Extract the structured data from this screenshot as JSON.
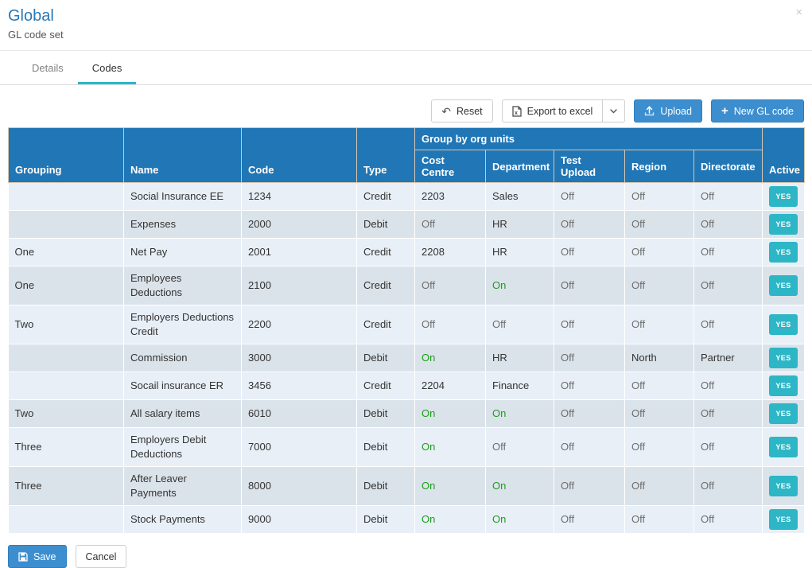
{
  "modal": {
    "title": "Global",
    "subtitle": "GL code set"
  },
  "icons": {
    "close": "×",
    "reset": "↶",
    "plus": "+"
  },
  "tabs": [
    {
      "label": "Details",
      "active": false
    },
    {
      "label": "Codes",
      "active": true
    }
  ],
  "toolbar": {
    "reset_label": "Reset",
    "export_label": "Export to excel",
    "upload_label": "Upload",
    "new_gl_label": "New GL code"
  },
  "table": {
    "group_header": "Group by org units",
    "columns": [
      "Grouping",
      "Name",
      "Code",
      "Type",
      "Cost Centre",
      "Department",
      "Test Upload",
      "Region",
      "Directorate",
      "Active"
    ],
    "row_keys": [
      "grouping",
      "name",
      "code",
      "type",
      "cost_centre",
      "department",
      "test_upload",
      "region",
      "directorate"
    ],
    "rows": [
      {
        "grouping": "",
        "name": "Social Insurance EE",
        "code": "1234",
        "type": "Credit",
        "cost_centre": "2203",
        "department": "Sales",
        "test_upload": "Off",
        "region": "Off",
        "directorate": "Off",
        "active": "YES"
      },
      {
        "grouping": "",
        "name": "Expenses",
        "code": "2000",
        "type": "Debit",
        "cost_centre": "Off",
        "department": "HR",
        "test_upload": "Off",
        "region": "Off",
        "directorate": "Off",
        "active": "YES"
      },
      {
        "grouping": "One",
        "name": "Net Pay",
        "code": "2001",
        "type": "Credit",
        "cost_centre": "2208",
        "department": "HR",
        "test_upload": "Off",
        "region": "Off",
        "directorate": "Off",
        "active": "YES"
      },
      {
        "grouping": "One",
        "name": "Employees Deductions",
        "code": "2100",
        "type": "Credit",
        "cost_centre": "Off",
        "department": "On",
        "test_upload": "Off",
        "region": "Off",
        "directorate": "Off",
        "active": "YES"
      },
      {
        "grouping": "Two",
        "name": "Employers Deductions Credit",
        "code": "2200",
        "type": "Credit",
        "cost_centre": "Off",
        "department": "Off",
        "test_upload": "Off",
        "region": "Off",
        "directorate": "Off",
        "active": "YES"
      },
      {
        "grouping": "",
        "name": "Commission",
        "code": "3000",
        "type": "Debit",
        "cost_centre": "On",
        "department": "HR",
        "test_upload": "Off",
        "region": "North",
        "directorate": "Partner",
        "active": "YES"
      },
      {
        "grouping": "",
        "name": "Socail insurance ER",
        "code": "3456",
        "type": "Credit",
        "cost_centre": "2204",
        "department": "Finance",
        "test_upload": "Off",
        "region": "Off",
        "directorate": "Off",
        "active": "YES"
      },
      {
        "grouping": "Two",
        "name": "All salary items",
        "code": "6010",
        "type": "Debit",
        "cost_centre": "On",
        "department": "On",
        "test_upload": "Off",
        "region": "Off",
        "directorate": "Off",
        "active": "YES"
      },
      {
        "grouping": "Three",
        "name": "Employers Debit Deductions",
        "code": "7000",
        "type": "Debit",
        "cost_centre": "On",
        "department": "Off",
        "test_upload": "Off",
        "region": "Off",
        "directorate": "Off",
        "active": "YES"
      },
      {
        "grouping": "Three",
        "name": "After Leaver Payments",
        "code": "8000",
        "type": "Debit",
        "cost_centre": "On",
        "department": "On",
        "test_upload": "Off",
        "region": "Off",
        "directorate": "Off",
        "active": "YES"
      },
      {
        "grouping": "",
        "name": "Stock Payments",
        "code": "9000",
        "type": "Debit",
        "cost_centre": "On",
        "department": "On",
        "test_upload": "Off",
        "region": "Off",
        "directorate": "Off",
        "active": "YES"
      }
    ]
  },
  "footer": {
    "save_label": "Save",
    "cancel_label": "Cancel"
  },
  "colors": {
    "title_blue": "#2878b8",
    "table_header_blue": "#2176b5",
    "primary_button_blue": "#3d8ecf",
    "tab_underline_teal": "#2bb7c7",
    "badge_teal": "#2cb6c6",
    "on_green": "#1f9c1f",
    "off_gray": "#6e6e6e",
    "row_light": "#e8eff7",
    "row_dark": "#dbe3ea"
  }
}
